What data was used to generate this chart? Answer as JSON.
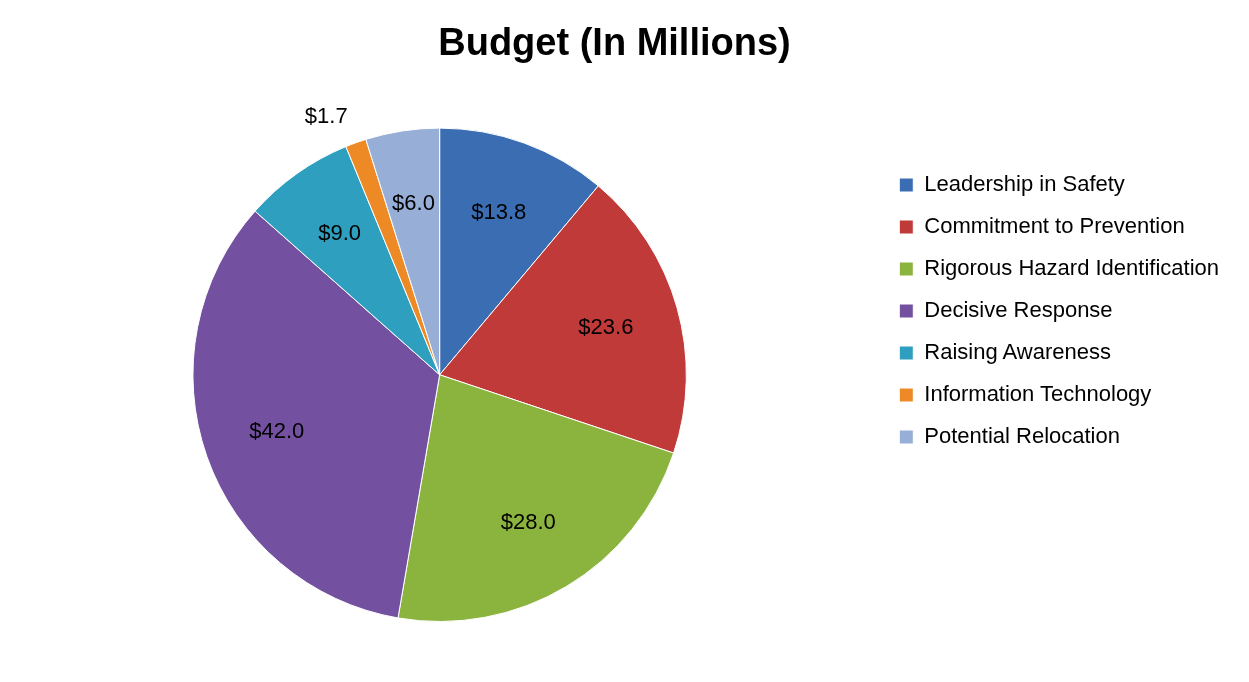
{
  "chart_data": {
    "type": "pie",
    "title": "Budget (In Millions)",
    "categories": [
      "Leadership in Safety",
      "Commitment to Prevention",
      "Rigorous Hazard Identification",
      "Decisive Response",
      "Raising Awareness",
      "Information Technology",
      "Potential Relocation"
    ],
    "values": [
      13.8,
      23.6,
      28.0,
      42.0,
      9.0,
      1.7,
      6.0
    ],
    "value_labels": [
      "$13.8",
      "$23.6",
      "$28.0",
      "$42.0",
      "$9.0",
      "$1.7",
      "$6.0"
    ],
    "colors": [
      "#3b6db3",
      "#c03a3a",
      "#8bb43e",
      "#7451a0",
      "#2f9fbf",
      "#ee8a25",
      "#97aed6"
    ],
    "legend": "right"
  }
}
